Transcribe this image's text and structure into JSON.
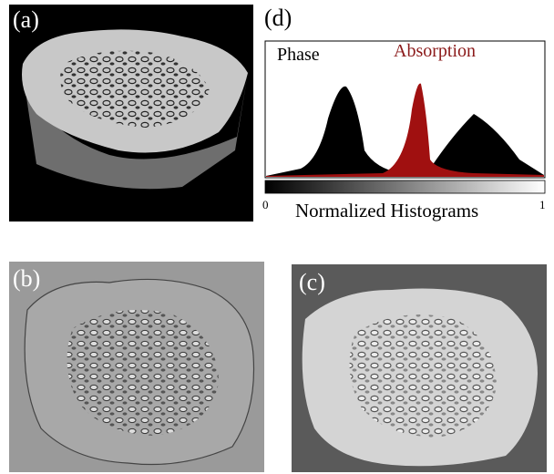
{
  "panels": {
    "a": "(a)",
    "b": "(b)",
    "c": "(c)",
    "d": "(d)"
  },
  "histogram": {
    "legend": [
      "Phase",
      "Absorption"
    ],
    "colorbar_min": "0",
    "colorbar_max": "1",
    "caption": "Normalized Histograms"
  }
}
